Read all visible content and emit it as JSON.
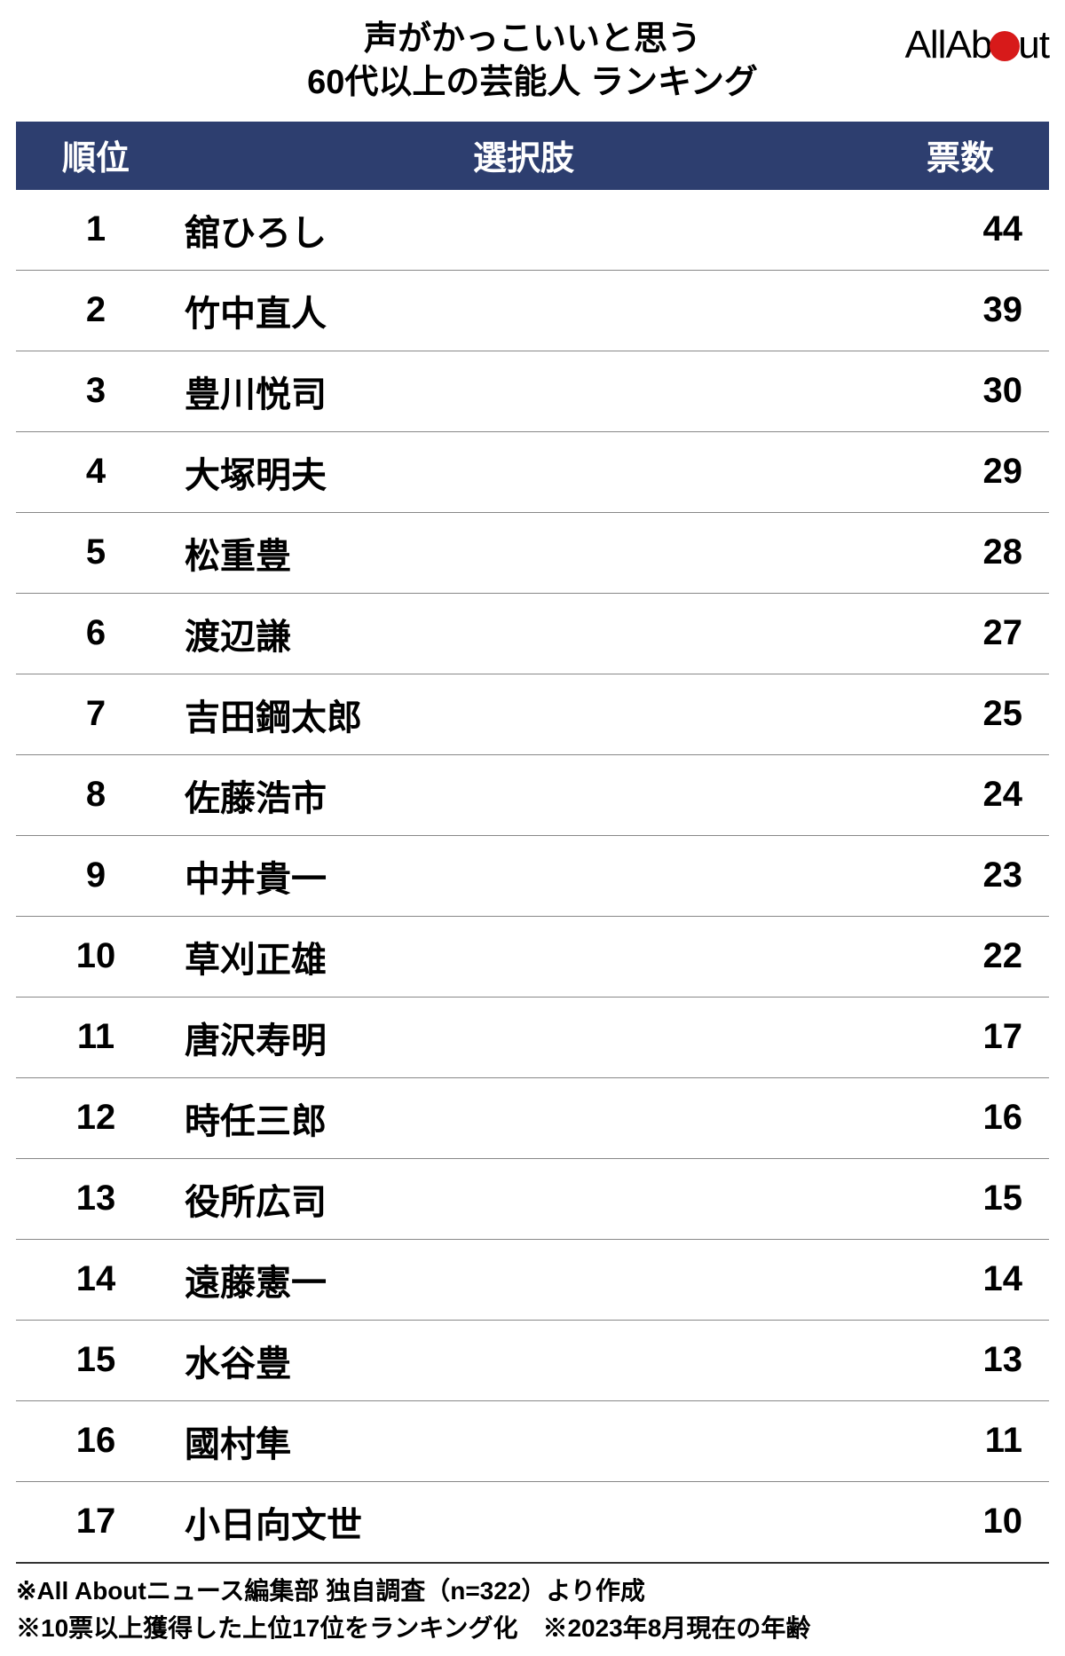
{
  "title": {
    "line1": "声がかっこいいと思う",
    "line2": "60代以上の芸能人 ランキング"
  },
  "logo": {
    "text_all": "All",
    "text_ab": "Ab",
    "text_ut": "ut",
    "dot_color": "#d71a1a"
  },
  "table": {
    "header_bg": "#2d3e6f",
    "header_fg": "#ffffff",
    "row_border_color": "#888888",
    "columns": {
      "rank": "順位",
      "name": "選択肢",
      "votes": "票数"
    },
    "rows": [
      {
        "rank": "1",
        "name": "舘ひろし",
        "votes": "44"
      },
      {
        "rank": "2",
        "name": "竹中直人",
        "votes": "39"
      },
      {
        "rank": "3",
        "name": "豊川悦司",
        "votes": "30"
      },
      {
        "rank": "4",
        "name": "大塚明夫",
        "votes": "29"
      },
      {
        "rank": "5",
        "name": "松重豊",
        "votes": "28"
      },
      {
        "rank": "6",
        "name": "渡辺謙",
        "votes": "27"
      },
      {
        "rank": "7",
        "name": "吉田鋼太郎",
        "votes": "25"
      },
      {
        "rank": "8",
        "name": "佐藤浩市",
        "votes": "24"
      },
      {
        "rank": "9",
        "name": "中井貴一",
        "votes": "23"
      },
      {
        "rank": "10",
        "name": "草刈正雄",
        "votes": "22"
      },
      {
        "rank": "11",
        "name": "唐沢寿明",
        "votes": "17"
      },
      {
        "rank": "12",
        "name": "時任三郎",
        "votes": "16"
      },
      {
        "rank": "13",
        "name": "役所広司",
        "votes": "15"
      },
      {
        "rank": "14",
        "name": "遠藤憲一",
        "votes": "14"
      },
      {
        "rank": "15",
        "name": "水谷豊",
        "votes": "13"
      },
      {
        "rank": "16",
        "name": "國村隼",
        "votes": "11"
      },
      {
        "rank": "17",
        "name": "小日向文世",
        "votes": "10"
      }
    ]
  },
  "footnotes": {
    "line1": "※All Aboutニュース編集部 独自調査（n=322）より作成",
    "line2": "※10票以上獲得した上位17位をランキング化　※2023年8月現在の年齢"
  }
}
